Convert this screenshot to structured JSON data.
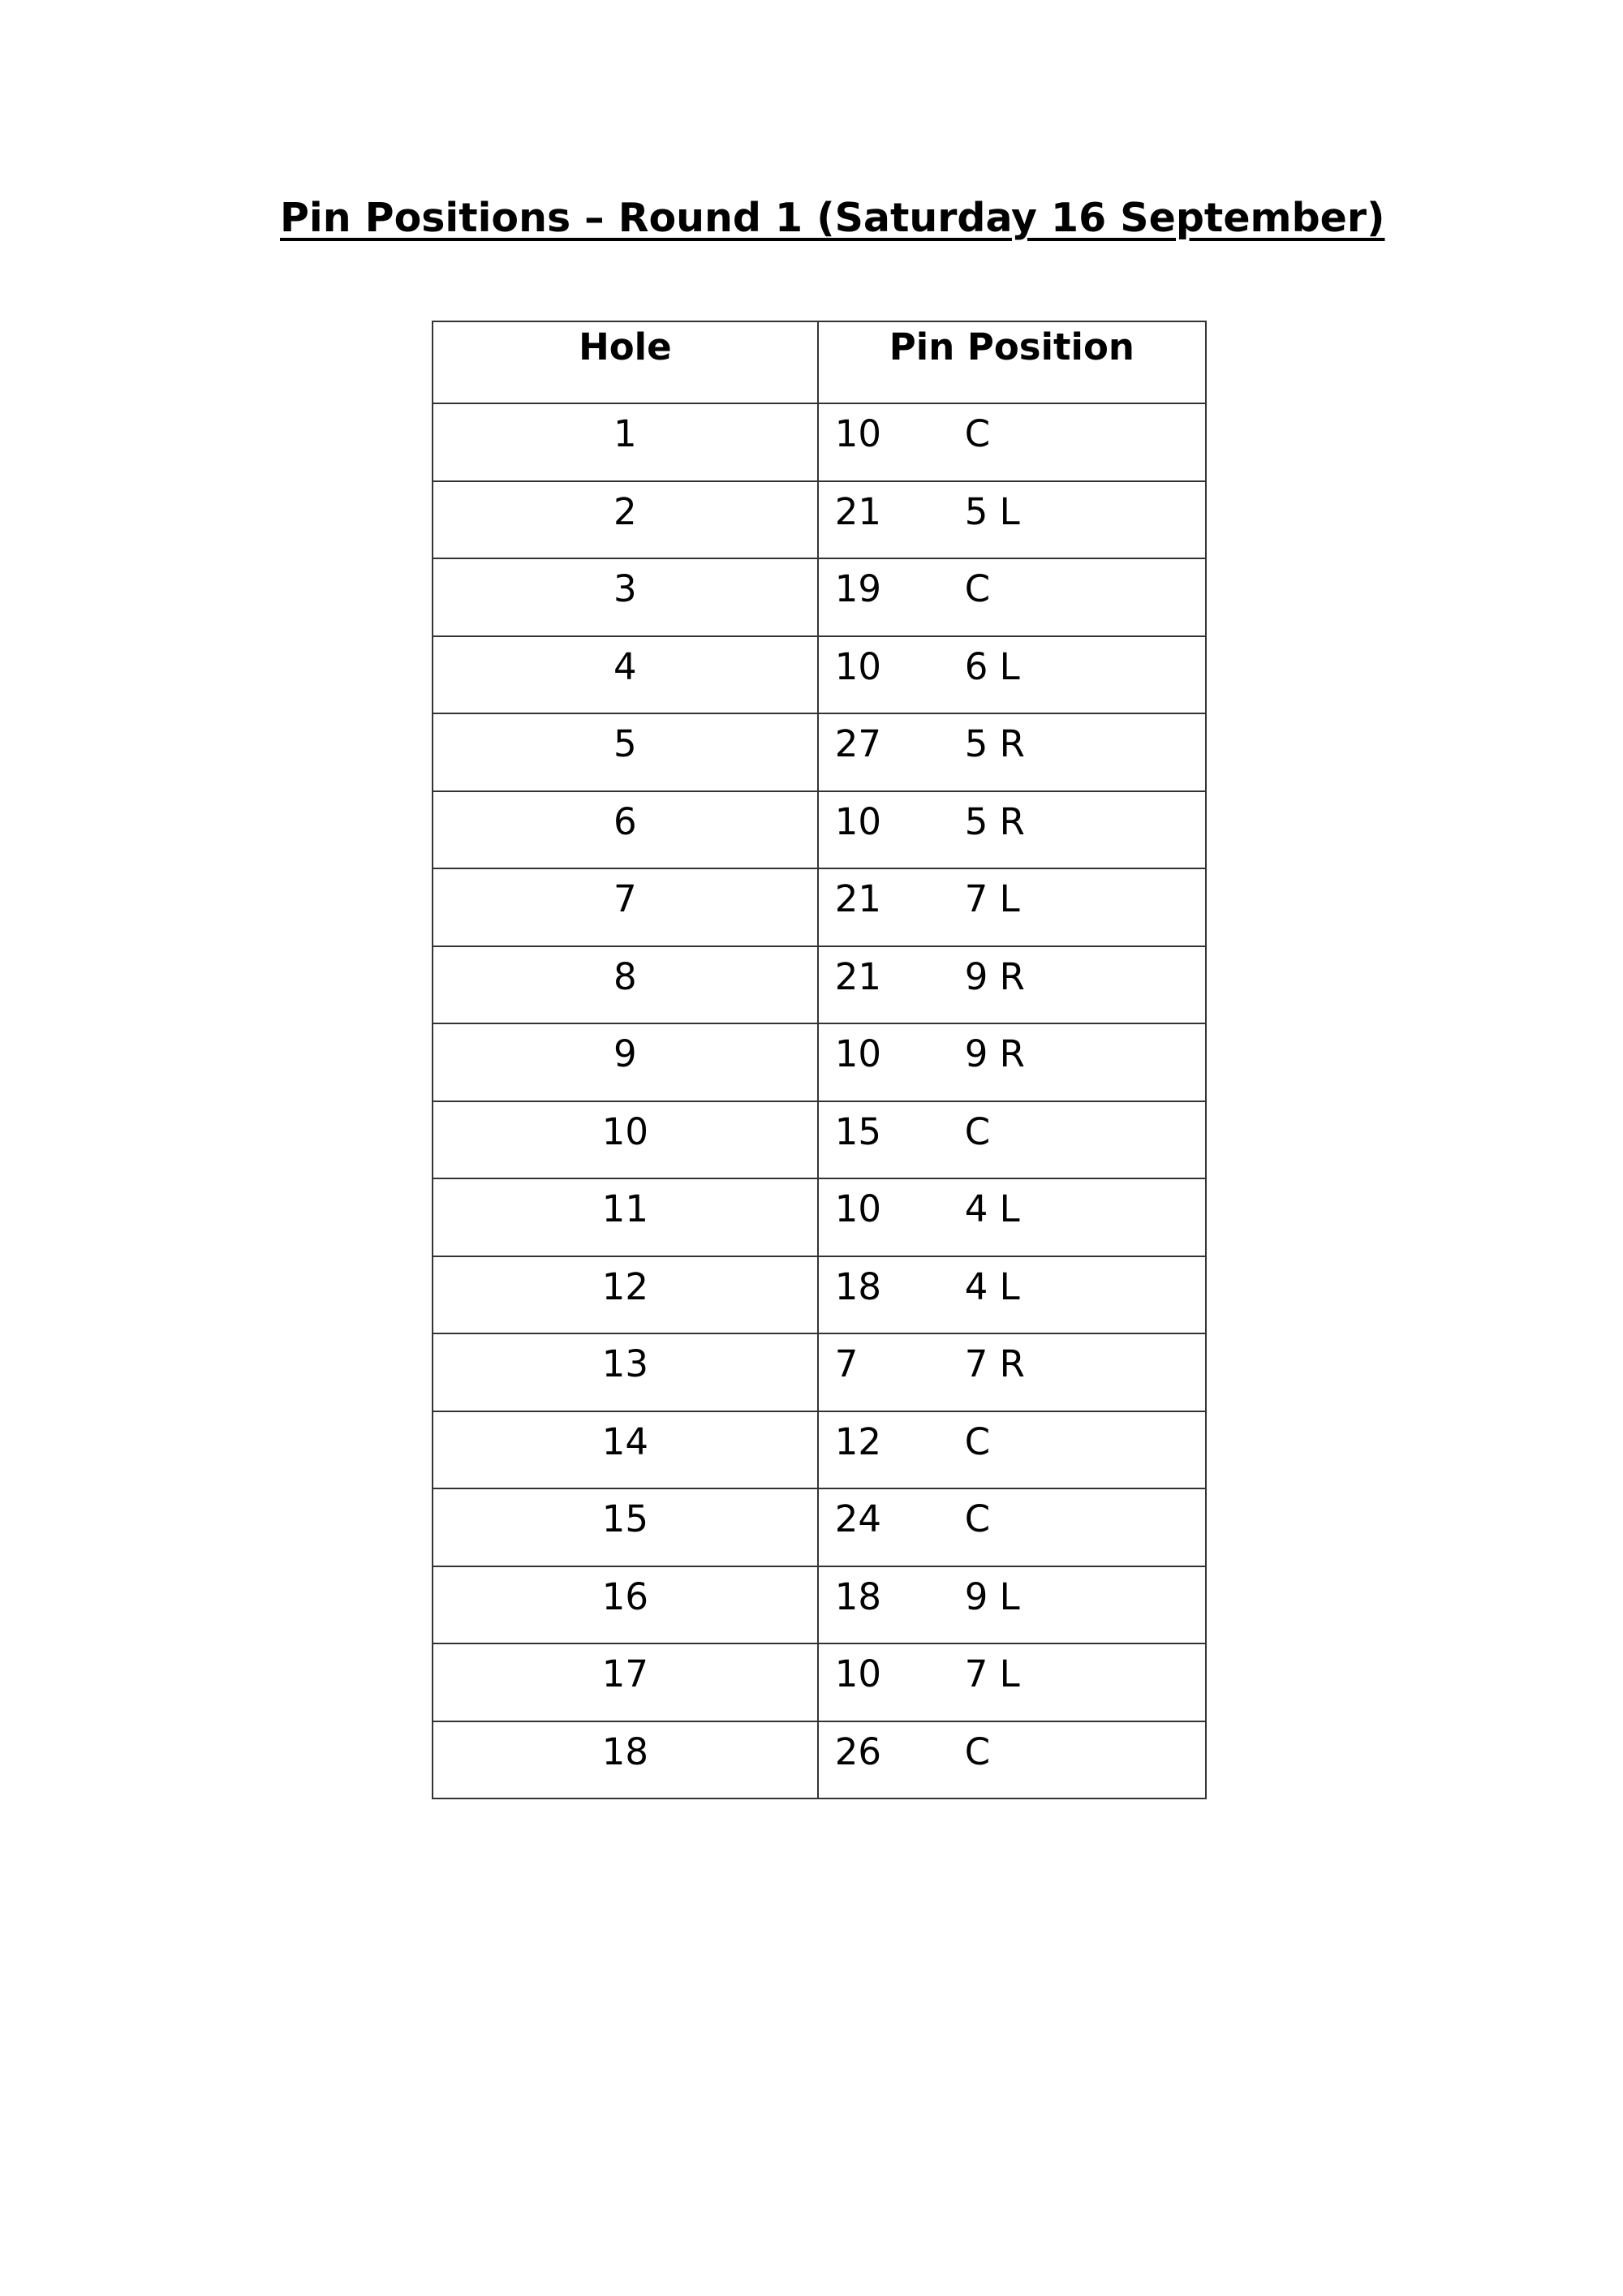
{
  "title": "Pin Positions – Round 1 (Saturday 16 September)",
  "table": {
    "headers": [
      "Hole",
      "Pin Position"
    ],
    "rows": [
      {
        "hole": "1",
        "distance": "10",
        "position": "C"
      },
      {
        "hole": "2",
        "distance": "21",
        "position": "5 L"
      },
      {
        "hole": "3",
        "distance": "19",
        "position": "C"
      },
      {
        "hole": "4",
        "distance": "10",
        "position": "6 L"
      },
      {
        "hole": "5",
        "distance": "27",
        "position": "5 R"
      },
      {
        "hole": "6",
        "distance": "10",
        "position": "5 R"
      },
      {
        "hole": "7",
        "distance": "21",
        "position": "7 L"
      },
      {
        "hole": "8",
        "distance": "21",
        "position": "9 R"
      },
      {
        "hole": "9",
        "distance": "10",
        "position": "9 R"
      },
      {
        "hole": "10",
        "distance": "15",
        "position": "C"
      },
      {
        "hole": "11",
        "distance": "10",
        "position": "4 L"
      },
      {
        "hole": "12",
        "distance": "18",
        "position": "4 L"
      },
      {
        "hole": "13",
        "distance": "7",
        "position": "7 R"
      },
      {
        "hole": "14",
        "distance": "12",
        "position": "C"
      },
      {
        "hole": "15",
        "distance": "24",
        "position": "C"
      },
      {
        "hole": "16",
        "distance": "18",
        "position": "9 L"
      },
      {
        "hole": "17",
        "distance": "10",
        "position": "7 L"
      },
      {
        "hole": "18",
        "distance": "26",
        "position": "C"
      }
    ]
  }
}
